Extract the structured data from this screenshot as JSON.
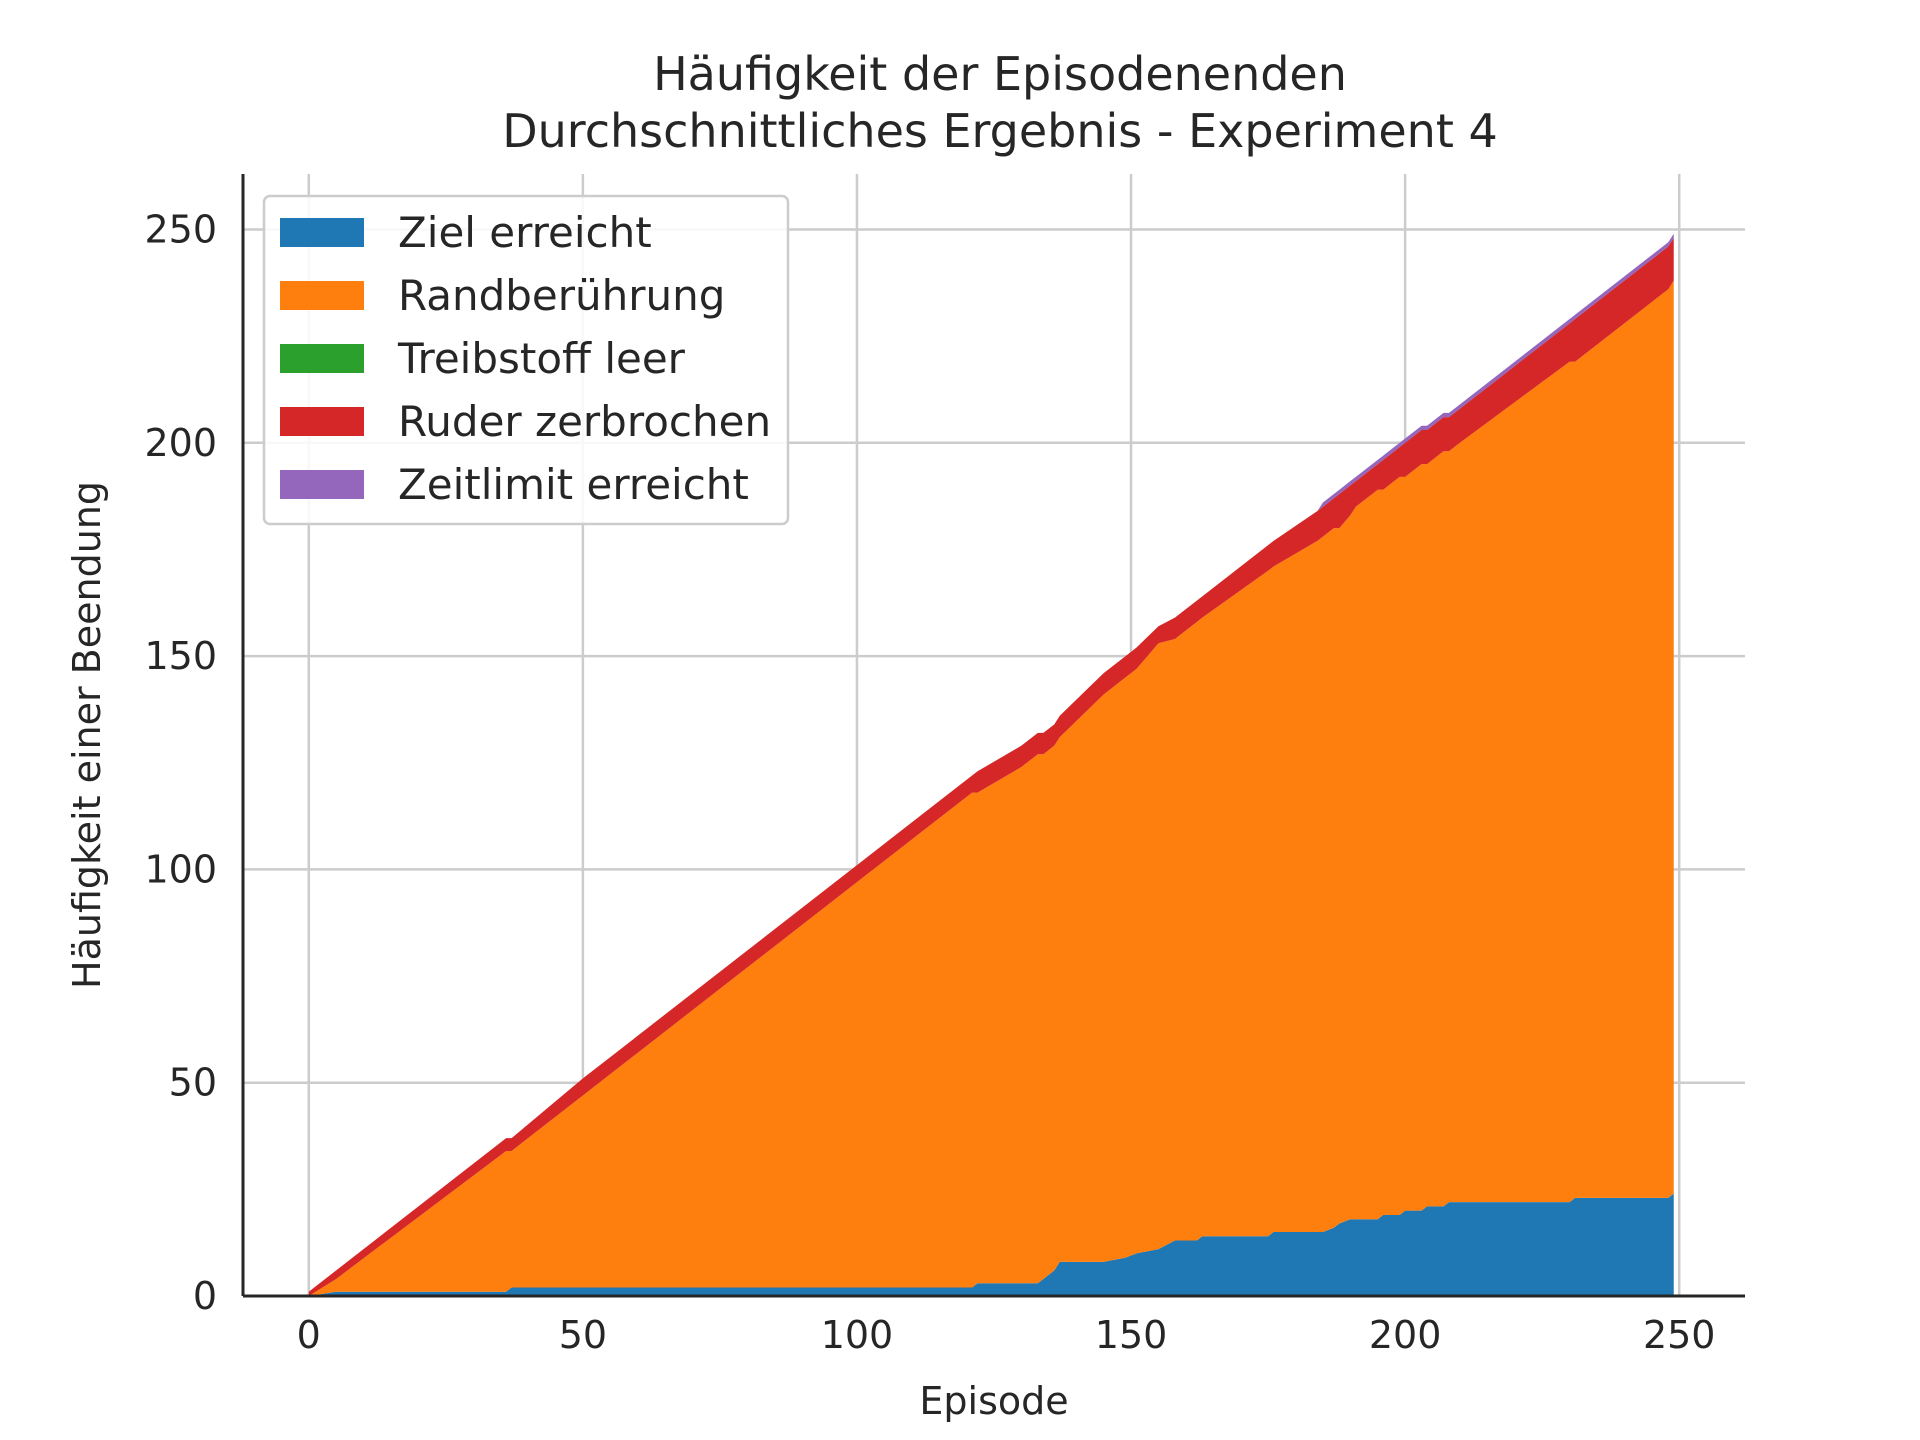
{
  "chart_data": {
    "type": "area",
    "title_lines": [
      "Häufigkeit der Episodenenden",
      "Durchschnittliches Ergebnis - Experiment 4"
    ],
    "xlabel": "Episode",
    "ylabel": "Häufigkeit einer Beendung",
    "xlim": [
      -12,
      262
    ],
    "ylim": [
      0,
      263
    ],
    "x_ticks": [
      0,
      50,
      100,
      150,
      200,
      250
    ],
    "y_ticks": [
      0,
      50,
      100,
      150,
      200,
      250
    ],
    "grid": true,
    "legend_position": "top-left",
    "stacked": true,
    "x": [
      0,
      5,
      36,
      37,
      50,
      55,
      60,
      100,
      121,
      122,
      130,
      133,
      134,
      136,
      137,
      145,
      149,
      151,
      155,
      158,
      162,
      163,
      175,
      176,
      184,
      185,
      187,
      188,
      190,
      191,
      195,
      196,
      199,
      200,
      203,
      204,
      207,
      208,
      210,
      230,
      231,
      248,
      249
    ],
    "series": [
      {
        "name": "Ziel erreicht",
        "color": "#1f77b4",
        "values": [
          0,
          1,
          1,
          2,
          2,
          2,
          2,
          2,
          2,
          3,
          3,
          3,
          4,
          6,
          8,
          8,
          9,
          10,
          11,
          13,
          13,
          14,
          14,
          15,
          15,
          15,
          16,
          17,
          18,
          18,
          18,
          19,
          19,
          20,
          20,
          21,
          21,
          22,
          22,
          22,
          23,
          23,
          24
        ]
      },
      {
        "name": "Randberührung",
        "color": "#ff7f0e",
        "values": [
          0,
          3,
          33,
          32,
          45,
          50,
          55,
          95,
          116,
          115,
          121,
          124,
          123,
          123,
          123,
          133,
          136,
          137,
          142,
          141,
          145,
          145,
          156,
          156,
          162,
          163,
          164,
          163,
          165,
          167,
          171,
          170,
          173,
          172,
          175,
          174,
          177,
          176,
          178,
          197,
          196,
          213,
          214
        ]
      },
      {
        "name": "Treibstoff leer",
        "color": "#2ca02c",
        "values": [
          0,
          0,
          0,
          0,
          0,
          0,
          0,
          0,
          0,
          0,
          0,
          0,
          0,
          0,
          0,
          0,
          0,
          0,
          0,
          0,
          0,
          0,
          0,
          0,
          0,
          0,
          0,
          0,
          0,
          0,
          0,
          0,
          0,
          0,
          0,
          0,
          0,
          0,
          0,
          0,
          0,
          0,
          0
        ]
      },
      {
        "name": "Ruder zerbrochen",
        "color": "#d62728",
        "values": [
          1,
          2,
          3,
          3,
          4,
          4,
          4,
          4,
          4,
          5,
          5,
          5,
          5,
          5,
          5,
          5,
          5,
          5,
          4,
          5,
          5,
          5,
          6,
          6,
          7,
          7,
          7,
          8,
          7,
          6,
          6,
          7,
          7,
          8,
          8,
          8,
          8,
          8,
          8,
          9,
          10,
          10,
          10
        ]
      },
      {
        "name": "Zeitlimit erreicht",
        "color": "#9467bd",
        "values": [
          0,
          0,
          0,
          0,
          0,
          0,
          0,
          0,
          0,
          0,
          0,
          0,
          0,
          0,
          0,
          0,
          0,
          0,
          0,
          0,
          0,
          0,
          0,
          0,
          0,
          1,
          1,
          1,
          1,
          1,
          1,
          1,
          1,
          1,
          1,
          1,
          1,
          1,
          1,
          1,
          1,
          1,
          1
        ]
      }
    ]
  }
}
